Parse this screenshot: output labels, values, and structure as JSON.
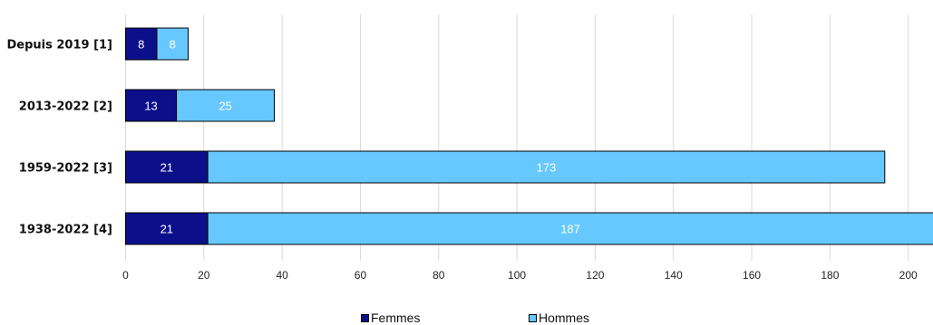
{
  "chart_data": {
    "type": "bar",
    "orientation": "horizontal",
    "stacked": true,
    "categories": [
      "Depuis 2019 [1]",
      "2013-2022 [2]",
      "1959-2022 [3]",
      "1938-2022 [4]"
    ],
    "series": [
      {
        "name": "Femmes",
        "values": [
          8,
          13,
          21,
          21
        ],
        "color": "#0b0f8a"
      },
      {
        "name": "Hommes",
        "values": [
          8,
          25,
          173,
          187
        ],
        "color": "#66c8ff"
      }
    ],
    "xlim": [
      0,
      200
    ],
    "xticks": [
      "0",
      "20",
      "40",
      "60",
      "80",
      "100",
      "120",
      "140",
      "160",
      "180",
      "200"
    ],
    "grid": "vertical",
    "legend_position": "bottom"
  }
}
